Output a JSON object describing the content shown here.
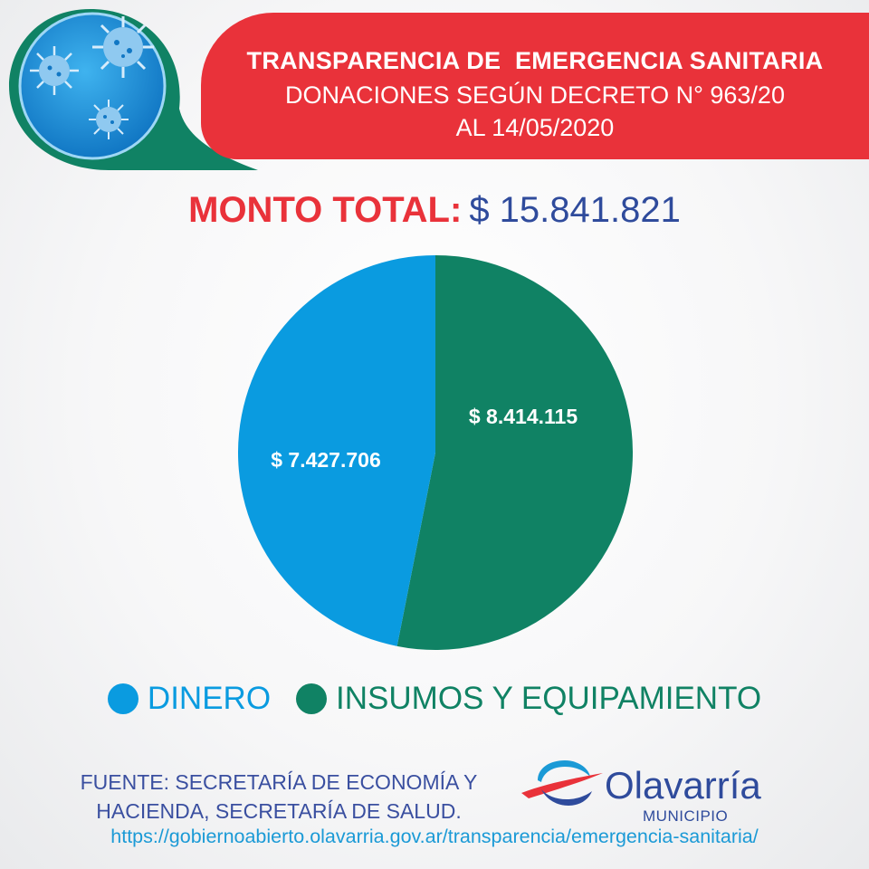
{
  "header": {
    "title": "TRANSPARENCIA DE  EMERGENCIA SANITARIA",
    "subtitle": "DONACIONES SEGÚN DECRETO N° 963/20",
    "date": "AL 14/05/2020"
  },
  "total": {
    "label": "MONTO TOTAL:",
    "value": "$ 15.841.821"
  },
  "chart_data": {
    "type": "pie",
    "categories": [
      "DINERO",
      "INSUMOS Y EQUIPAMIENTO"
    ],
    "values": [
      7427706,
      8414115
    ],
    "data_labels": [
      "$ 7.427.706",
      "$ 8.414.115"
    ],
    "colors": [
      "#0a9be0",
      "#108264"
    ],
    "legend_position": "bottom"
  },
  "legend": {
    "items": [
      {
        "label": "DINERO",
        "color": "#0a9be0"
      },
      {
        "label": "INSUMOS Y EQUIPAMIENTO",
        "color": "#108264"
      }
    ]
  },
  "source": {
    "line1": "FUENTE: SECRETARÍA DE ECONOMÍA Y",
    "line2": "HACIENDA, SECRETARÍA DE SALUD.",
    "url": "https://gobiernoabierto.olavarria.gov.ar/transparencia/emergencia-sanitaria/"
  },
  "logo": {
    "name": "Olavarría",
    "sub": "MUNICIPIO",
    "icon": "olavarria-logo-icon"
  },
  "decor": {
    "icon": "virus-icon",
    "colors": {
      "ring": "#108264",
      "fill": "#1f95db",
      "accent": "#e9323a"
    }
  }
}
